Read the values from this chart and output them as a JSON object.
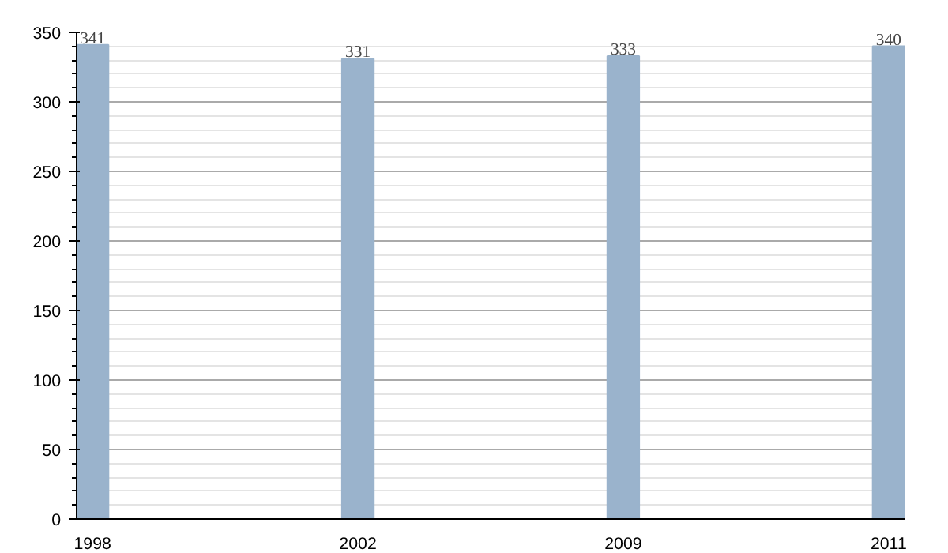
{
  "chart_data": {
    "type": "bar",
    "categories": [
      "1998",
      "2002",
      "2009",
      "2011"
    ],
    "values": [
      341,
      331,
      333,
      340
    ],
    "color": "#9ab3cc",
    "ylim": [
      0,
      350
    ],
    "yticks": [
      0,
      50,
      100,
      150,
      200,
      250,
      300,
      350
    ],
    "grid": "y",
    "data_labels": true
  }
}
